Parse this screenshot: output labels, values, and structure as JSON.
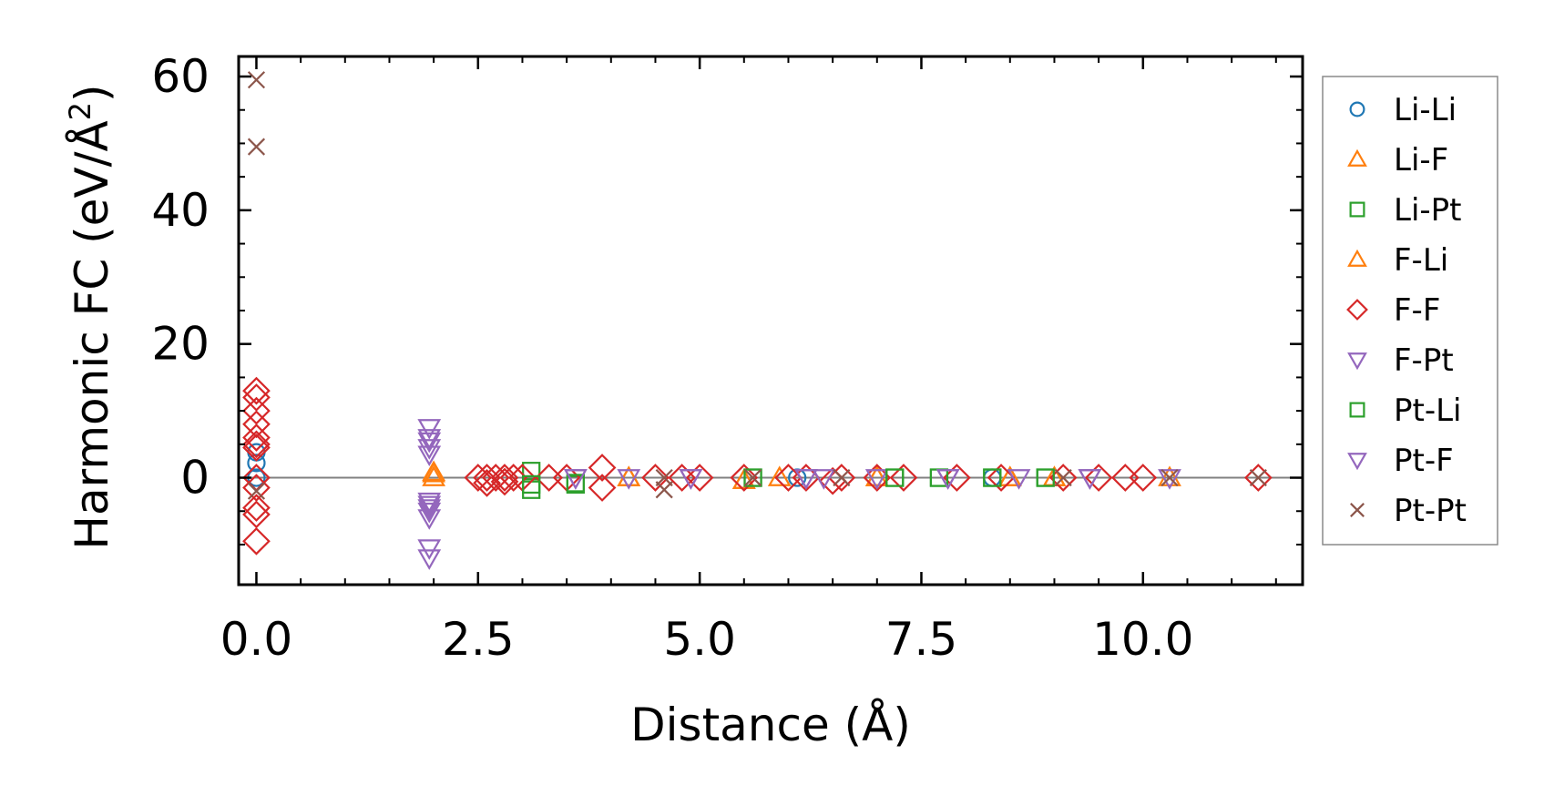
{
  "chart_data": {
    "type": "scatter",
    "title": "",
    "xlabel": "Distance (Å)",
    "ylabel_main": "Harmonic FC (eV/Å",
    "ylabel_power": "2",
    "ylabel_close": ")",
    "xlim": [
      -0.2,
      11.8
    ],
    "ylim": [
      -16,
      63
    ],
    "x_ticks": [
      0.0,
      2.5,
      5.0,
      7.5,
      10.0
    ],
    "x_tick_labels": [
      "0.0",
      "2.5",
      "5.0",
      "7.5",
      "10.0"
    ],
    "y_ticks": [
      0,
      20,
      40,
      60
    ],
    "y_tick_labels": [
      "0",
      "20",
      "40",
      "60"
    ],
    "reference_line_y": 0,
    "legend_position": "outside-right",
    "series": [
      {
        "name": "Li-Li",
        "marker": "circle",
        "color": "#1f77b4",
        "x": [
          0.0,
          0.0,
          0.0,
          6.1,
          8.3
        ],
        "y": [
          0.0,
          2.2,
          3.8,
          0.0,
          0.0
        ]
      },
      {
        "name": "Li-F",
        "marker": "triangle-up",
        "color": "#ff7f0e",
        "x": [
          2.0,
          2.0,
          4.2,
          5.5,
          5.9,
          7.0,
          8.5,
          9.0,
          10.3
        ],
        "y": [
          0.8,
          0.0,
          0.0,
          -0.4,
          0.0,
          0.0,
          0.0,
          0.0,
          0.0
        ]
      },
      {
        "name": "Li-Pt",
        "marker": "square",
        "color": "#2ca02c",
        "x": [
          3.1,
          3.1,
          3.6,
          5.6,
          7.2,
          7.7,
          8.3,
          8.9
        ],
        "y": [
          1.0,
          -1.8,
          -1.0,
          0.0,
          0.0,
          0.0,
          0.0,
          0.0
        ]
      },
      {
        "name": "F-Li",
        "marker": "triangle-up",
        "color": "#ff7f0e",
        "x": [
          2.0,
          4.2,
          5.5,
          7.0,
          8.5,
          9.0
        ],
        "y": [
          0.6,
          0.0,
          -0.4,
          0.0,
          0.0,
          0.0
        ]
      },
      {
        "name": "F-F",
        "marker": "diamond",
        "color": "#d62728",
        "x": [
          0.0,
          0.0,
          0.0,
          0.0,
          0.0,
          0.0,
          0.0,
          0.0,
          0.0,
          0.0,
          0.0,
          0.0,
          2.5,
          2.6,
          2.7,
          2.8,
          2.9,
          3.0,
          2.6,
          2.8,
          3.3,
          3.5,
          3.9,
          3.9,
          4.5,
          4.8,
          5.0,
          5.5,
          6.0,
          6.2,
          6.6,
          6.5,
          7.0,
          7.3,
          7.9,
          8.4,
          9.1,
          9.5,
          9.8,
          10.0,
          11.3
        ],
        "y": [
          13.0,
          12.0,
          10.0,
          8.0,
          6.0,
          5.0,
          4.5,
          -1.5,
          -4.5,
          -5.5,
          -9.5,
          0.0,
          0.0,
          0.0,
          0.0,
          0.0,
          0.0,
          0.0,
          -0.8,
          -0.6,
          0.0,
          0.0,
          1.5,
          -1.5,
          0.0,
          0.0,
          0.0,
          0.0,
          0.0,
          0.0,
          0.0,
          -0.5,
          0.0,
          0.0,
          0.0,
          0.0,
          0.0,
          0.0,
          0.0,
          0.0,
          0.0
        ]
      },
      {
        "name": "F-Pt",
        "marker": "triangle-down",
        "color": "#9467bd",
        "x": [
          1.95,
          1.95,
          1.95,
          1.95,
          1.95,
          1.95,
          1.95,
          1.95,
          1.95,
          3.6,
          4.2,
          4.9,
          6.2,
          6.4,
          7.0,
          7.8,
          8.6,
          9.4,
          10.3
        ],
        "y": [
          7.5,
          5.5,
          4.5,
          3.5,
          -3.5,
          -4.5,
          -6.0,
          -10.5,
          -12.0,
          0.0,
          0.0,
          0.0,
          0.0,
          0.0,
          0.0,
          0.0,
          0.0,
          0.0,
          0.0
        ]
      },
      {
        "name": "Pt-Li",
        "marker": "square",
        "color": "#2ca02c",
        "x": [
          3.1,
          3.6,
          5.6,
          7.2,
          7.7,
          8.3,
          8.9
        ],
        "y": [
          -1.0,
          -0.8,
          0.0,
          0.0,
          0.0,
          0.0,
          0.0
        ]
      },
      {
        "name": "Pt-F",
        "marker": "triangle-down",
        "color": "#9467bd",
        "x": [
          1.95,
          1.95,
          1.95,
          3.6,
          4.9,
          6.2,
          7.8,
          9.4
        ],
        "y": [
          6.0,
          -4.0,
          -5.0,
          0.0,
          0.0,
          0.0,
          0.0,
          0.0
        ]
      },
      {
        "name": "Pt-Pt",
        "marker": "x",
        "color": "#8c564b",
        "x": [
          0.0,
          0.0,
          0.0,
          4.6,
          4.6,
          5.6,
          6.6,
          9.1,
          10.3,
          11.3
        ],
        "y": [
          59.5,
          49.5,
          -2.0,
          0.0,
          -1.8,
          0.0,
          0.0,
          0.0,
          0.0,
          0.0
        ]
      }
    ]
  }
}
